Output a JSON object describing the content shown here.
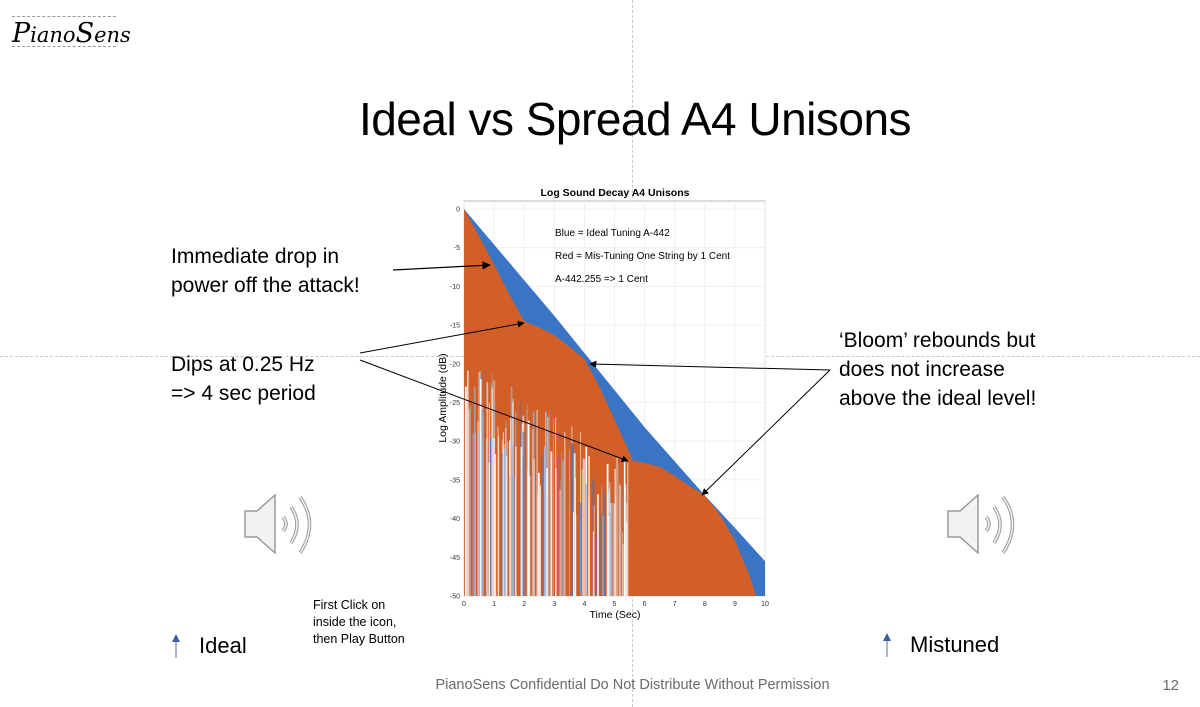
{
  "slide": {
    "logo": {
      "prefix_big": "P",
      "prefix": "iano",
      "suffix_big": "S",
      "suffix": "ens"
    },
    "title": "Ideal vs Spread A4 Unisons",
    "annotations": {
      "attack": [
        "Immediate drop in",
        "power off the attack!"
      ],
      "dips": [
        "Dips at 0.25 Hz",
        "=> 4 sec period"
      ],
      "bloom": [
        "‘Bloom’ rebounds but",
        "does not increase",
        "above the ideal level!"
      ]
    },
    "instruction": [
      "First Click on",
      "inside the icon,",
      "then Play Button"
    ],
    "audio": [
      {
        "label": "Ideal",
        "icon": "speaker-icon"
      },
      {
        "label": "Mistuned",
        "icon": "speaker-icon"
      }
    ],
    "footer": "PianoSens Confidential Do Not Distribute Without Permission",
    "page_number": "12"
  },
  "colors": {
    "ideal": "#3a74c4",
    "mistuned": "#d15f27",
    "arrow_marker": "#3b5da8"
  },
  "chart_data": {
    "type": "area",
    "title": "Log Sound Decay A4 Unisons",
    "xlabel": "Time (Sec)",
    "ylabel": "Log Amplitude (dB)",
    "xlim": [
      0,
      10
    ],
    "ylim": [
      -50,
      0
    ],
    "xticks": [
      0,
      1,
      2,
      3,
      4,
      5,
      6,
      7,
      8,
      9,
      10
    ],
    "yticks": [
      0,
      -5,
      -10,
      -15,
      -20,
      -25,
      -30,
      -35,
      -40,
      -45,
      -50
    ],
    "grid": true,
    "legend_text": [
      "Blue = Ideal Tuning A-442",
      "Red = Mis-Tuning One String by 1 Cent",
      "A-442.255 => 1 Cent"
    ],
    "series": [
      {
        "name": "Ideal Tuning A-442 (upper envelope)",
        "color": "#3a74c4",
        "x": [
          0,
          1,
          2,
          3,
          4,
          5,
          6,
          7,
          8,
          9,
          10
        ],
        "y": [
          0,
          -4.6,
          -9.2,
          -13.8,
          -18.6,
          -23.4,
          -28.2,
          -32.6,
          -37.0,
          -41.2,
          -45.5
        ]
      },
      {
        "name": "Mis-Tuned one string by 1 cent (upper envelope)",
        "color": "#d15f27",
        "x": [
          0,
          0.5,
          1,
          1.5,
          2.0,
          2.5,
          3.0,
          3.5,
          4.0,
          4.5,
          5.0,
          5.5,
          5.6,
          6.0,
          6.5,
          7.0,
          7.5,
          8.0,
          8.5,
          9.0,
          9.5,
          9.7
        ],
        "y": [
          0,
          -3.5,
          -7.2,
          -11.0,
          -14.5,
          -15.3,
          -16.3,
          -17.8,
          -19.4,
          -23.0,
          -27.2,
          -31.5,
          -32.5,
          -32.8,
          -33.3,
          -34.5,
          -35.8,
          -37.0,
          -39.5,
          -42.8,
          -47.5,
          -50
        ]
      }
    ],
    "annotations": [
      {
        "text": "Immediate drop in power off the attack!",
        "point": [
          0.9,
          -7.3
        ]
      },
      {
        "text": "Dips at 0.25 Hz => 4 sec period",
        "points": [
          [
            2.0,
            -14.5
          ],
          [
            5.5,
            -32.3
          ]
        ]
      },
      {
        "text": "Bloom rebounds but does not increase above the ideal level!",
        "points": [
          [
            4.1,
            -19.4
          ],
          [
            7.9,
            -37.0
          ]
        ]
      }
    ]
  }
}
